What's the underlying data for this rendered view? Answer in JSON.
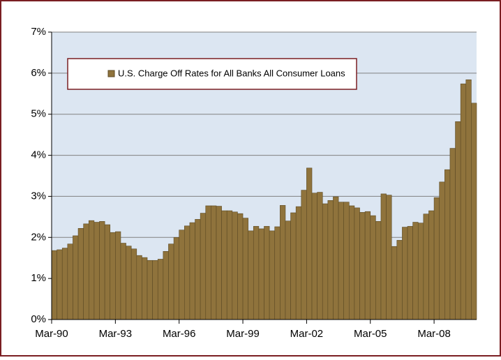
{
  "chart_data": {
    "type": "bar",
    "legend": "U.S. Charge Off Rates for All Banks All Consumer Loans",
    "color": "#8f733c",
    "categories": [
      "Mar-90",
      null,
      null,
      null,
      null,
      null,
      null,
      null,
      null,
      null,
      null,
      null,
      "Mar-93",
      null,
      null,
      null,
      null,
      null,
      null,
      null,
      null,
      null,
      null,
      null,
      "Mar-96",
      null,
      null,
      null,
      null,
      null,
      null,
      null,
      null,
      null,
      null,
      null,
      "Mar-99",
      null,
      null,
      null,
      null,
      null,
      null,
      null,
      null,
      null,
      null,
      null,
      "Mar-02",
      null,
      null,
      null,
      null,
      null,
      null,
      null,
      null,
      null,
      null,
      null,
      "Mar-05",
      null,
      null,
      null,
      null,
      null,
      null,
      null,
      null,
      null,
      null,
      null,
      "Mar-08",
      null,
      null,
      null,
      null,
      null,
      null,
      null
    ],
    "values": [
      1.68,
      1.7,
      1.74,
      1.84,
      2.04,
      2.22,
      2.33,
      2.41,
      2.37,
      2.39,
      2.31,
      2.12,
      2.14,
      1.86,
      1.79,
      1.72,
      1.56,
      1.51,
      1.44,
      1.44,
      1.47,
      1.66,
      1.84,
      2.0,
      2.18,
      2.28,
      2.36,
      2.44,
      2.59,
      2.77,
      2.77,
      2.76,
      2.65,
      2.65,
      2.62,
      2.58,
      2.47,
      2.16,
      2.27,
      2.21,
      2.27,
      2.16,
      2.26,
      2.78,
      2.4,
      2.6,
      2.75,
      3.15,
      3.69,
      3.08,
      3.1,
      2.82,
      2.9,
      2.99,
      2.86,
      2.86,
      2.77,
      2.72,
      2.61,
      2.63,
      2.53,
      2.39,
      3.06,
      3.03,
      1.78,
      1.93,
      2.25,
      2.27,
      2.37,
      2.35,
      2.57,
      2.65,
      2.97,
      3.35,
      3.65,
      4.17,
      4.82,
      5.74,
      5.84,
      5.27
    ],
    "ylim": [
      0,
      7
    ],
    "yticks": [
      {
        "value": 0,
        "label": "0%"
      },
      {
        "value": 1,
        "label": "1%"
      },
      {
        "value": 2,
        "label": "2%"
      },
      {
        "value": 3,
        "label": "3%"
      },
      {
        "value": 4,
        "label": "4%"
      },
      {
        "value": 5,
        "label": "5%"
      },
      {
        "value": 6,
        "label": "6%"
      },
      {
        "value": 7,
        "label": "7%"
      }
    ],
    "grid": true
  }
}
